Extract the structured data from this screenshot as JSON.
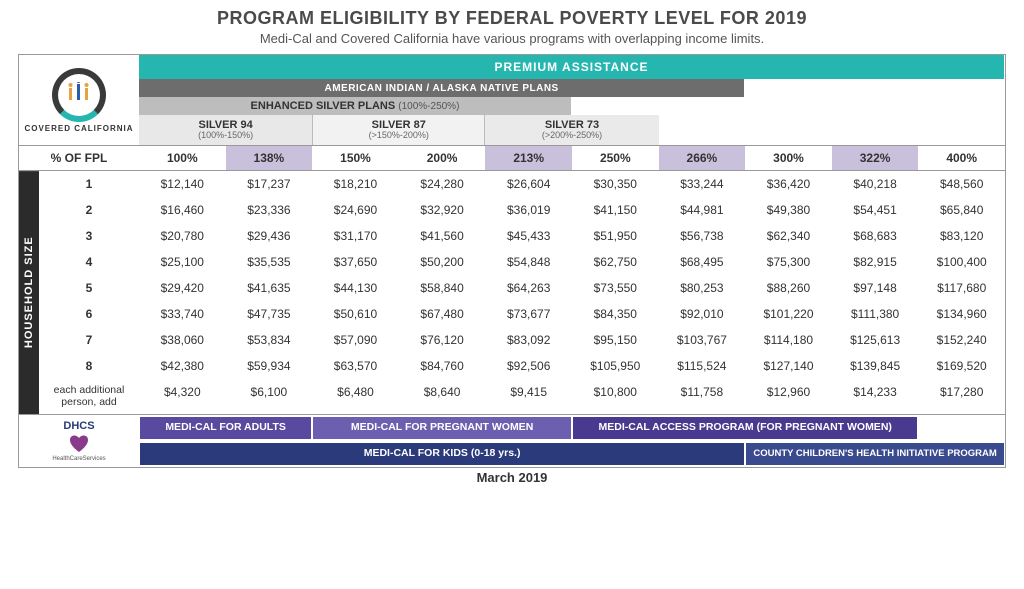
{
  "title": "PROGRAM ELIGIBILITY BY FEDERAL POVERTY LEVEL FOR 2019",
  "subtitle": "Medi-Cal and Covered California have various programs with overlapping income limits.",
  "logo": {
    "brand": "COVERED CALIFORNIA"
  },
  "bars": {
    "premium": "PREMIUM ASSISTANCE",
    "aian": "AMERICAN INDIAN / ALASKA NATIVE PLANS",
    "enhanced": "ENHANCED SILVER PLANS",
    "enhanced_range": "(100%-250%)",
    "silver94": {
      "name": "SILVER 94",
      "range": "(100%-150%)"
    },
    "silver87": {
      "name": "SILVER 87",
      "range": "(>150%-200%)"
    },
    "silver73": {
      "name": "SILVER 73",
      "range": "(>200%-250%)"
    }
  },
  "fpl_header_label": "% OF FPL",
  "fpl_columns": [
    "100%",
    "138%",
    "150%",
    "200%",
    "213%",
    "250%",
    "266%",
    "300%",
    "322%",
    "400%"
  ],
  "highlight_cols": [
    1,
    4,
    6,
    8
  ],
  "household_label": "HOUSEHOLD SIZE",
  "rows": [
    {
      "label": "1",
      "v": [
        "$12,140",
        "$17,237",
        "$18,210",
        "$24,280",
        "$26,604",
        "$30,350",
        "$33,244",
        "$36,420",
        "$40,218",
        "$48,560"
      ]
    },
    {
      "label": "2",
      "v": [
        "$16,460",
        "$23,336",
        "$24,690",
        "$32,920",
        "$36,019",
        "$41,150",
        "$44,981",
        "$49,380",
        "$54,451",
        "$65,840"
      ]
    },
    {
      "label": "3",
      "v": [
        "$20,780",
        "$29,436",
        "$31,170",
        "$41,560",
        "$45,433",
        "$51,950",
        "$56,738",
        "$62,340",
        "$68,683",
        "$83,120"
      ]
    },
    {
      "label": "4",
      "v": [
        "$25,100",
        "$35,535",
        "$37,650",
        "$50,200",
        "$54,848",
        "$62,750",
        "$68,495",
        "$75,300",
        "$82,915",
        "$100,400"
      ]
    },
    {
      "label": "5",
      "v": [
        "$29,420",
        "$41,635",
        "$44,130",
        "$58,840",
        "$64,263",
        "$73,550",
        "$80,253",
        "$88,260",
        "$97,148",
        "$117,680"
      ]
    },
    {
      "label": "6",
      "v": [
        "$33,740",
        "$47,735",
        "$50,610",
        "$67,480",
        "$73,677",
        "$84,350",
        "$92,010",
        "$101,220",
        "$111,380",
        "$134,960"
      ]
    },
    {
      "label": "7",
      "v": [
        "$38,060",
        "$53,834",
        "$57,090",
        "$76,120",
        "$83,092",
        "$95,150",
        "$103,767",
        "$114,180",
        "$125,613",
        "$152,240"
      ]
    },
    {
      "label": "8",
      "v": [
        "$42,380",
        "$59,934",
        "$63,570",
        "$84,760",
        "$92,506",
        "$105,950",
        "$115,524",
        "$127,140",
        "$139,845",
        "$169,520"
      ]
    }
  ],
  "extra_row": {
    "label": "each additional person, add",
    "v": [
      "$4,320",
      "$6,100",
      "$6,480",
      "$8,640",
      "$9,415",
      "$10,800",
      "$11,758",
      "$12,960",
      "$14,233",
      "$17,280"
    ]
  },
  "programs": {
    "adults": "MEDI-CAL FOR ADULTS",
    "pregnant": "MEDI-CAL FOR PREGNANT WOMEN",
    "access": "MEDI-CAL ACCESS PROGRAM (FOR PREGNANT WOMEN)",
    "kids": "MEDI-CAL FOR KIDS (0-18 yrs.)",
    "cchip": "COUNTY CHILDREN'S HEALTH INITIATIVE PROGRAM"
  },
  "dhcs": {
    "top": "DHCS",
    "bottom": "HealthCareServices"
  },
  "date": "March 2019",
  "colors": {
    "teal": "#26b6b0",
    "grey": "#6d6d6d",
    "ltgrey": "#bdbdbd",
    "purple1": "#5a4a9f",
    "purple2": "#6d5fb0",
    "purple3": "#4a3a8f",
    "navy1": "#2a3a7a",
    "navy2": "#3a4a8f",
    "hl": "#c9c0dc"
  }
}
